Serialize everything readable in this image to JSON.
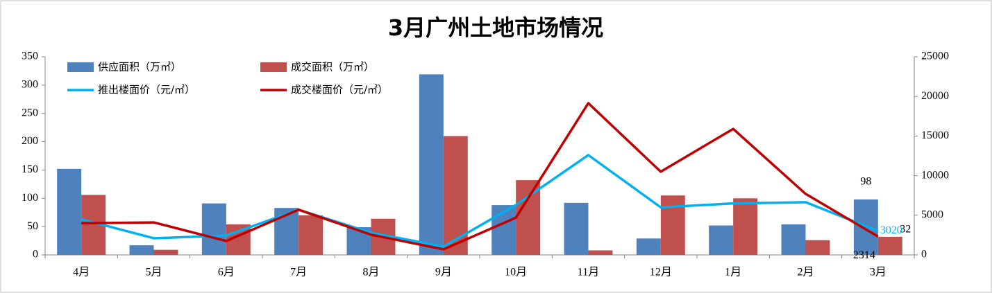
{
  "chart_data": {
    "type": "bar",
    "title": "3月广州土地市场情况",
    "categories": [
      "4月",
      "5月",
      "6月",
      "7月",
      "8月",
      "9月",
      "10月",
      "11月",
      "12月",
      "1月",
      "2月",
      "3月"
    ],
    "series": [
      {
        "name": "供应面积（万㎡）",
        "type": "bar",
        "color": "#4f81bd",
        "values": [
          152,
          17,
          91,
          83,
          49,
          319,
          88,
          92,
          29,
          52,
          54,
          98
        ]
      },
      {
        "name": "成交面积（万㎡）",
        "type": "bar",
        "color": "#c0504d",
        "values": [
          106,
          9,
          54,
          70,
          64,
          210,
          132,
          8,
          105,
          100,
          26,
          32
        ]
      },
      {
        "name": "推出楼面价（元/㎡）",
        "type": "line",
        "axis": "y2",
        "color": "#00b0f0",
        "values": [
          4500,
          2100,
          2450,
          5700,
          2800,
          1050,
          6300,
          12600,
          6000,
          6500,
          6650,
          3020
        ]
      },
      {
        "name": "成交楼面价（元/㎡）",
        "type": "line",
        "axis": "y2",
        "color": "#c00000",
        "values": [
          4000,
          4100,
          1750,
          5700,
          2550,
          700,
          4700,
          19150,
          10500,
          15900,
          7700,
          2314
        ]
      }
    ],
    "ylim": [
      0,
      350
    ],
    "yticks": [
      0,
      50,
      100,
      150,
      200,
      250,
      300,
      350
    ],
    "y2lim": [
      0,
      25000
    ],
    "y2ticks": [
      0,
      5000,
      10000,
      15000,
      20000,
      25000
    ],
    "grid": false,
    "legend": "upper left",
    "label_last": true
  }
}
